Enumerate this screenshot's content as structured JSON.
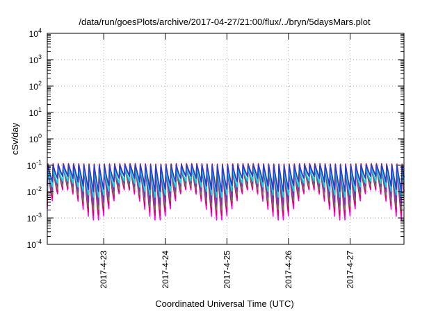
{
  "chart_data": {
    "type": "line",
    "title": "/data/run/goesPlots/archive/2017-04-27/21:00/flux/../bryn/5daysMars.plot",
    "xlabel": "Coordinated Universal Time (UTC)",
    "ylabel": "cSv/day",
    "yscale": "log",
    "ylim": [
      0.0001,
      10000
    ],
    "xlim": [
      "2017-04-22T02:00",
      "2017-04-27T21:00"
    ],
    "grid": true,
    "legend": "none",
    "y_ticks": [
      {
        "base": "10",
        "exp": "-4"
      },
      {
        "base": "10",
        "exp": "-3"
      },
      {
        "base": "10",
        "exp": "-2"
      },
      {
        "base": "10",
        "exp": "-1"
      },
      {
        "base": "10",
        "exp": "0"
      },
      {
        "base": "10",
        "exp": "1"
      },
      {
        "base": "10",
        "exp": "2"
      },
      {
        "base": "10",
        "exp": "3"
      },
      {
        "base": "10",
        "exp": "4"
      }
    ],
    "x_ticks": [
      "2017-4-23",
      "2017-4-24",
      "2017-4-25",
      "2017-4-26",
      "2017-4-27"
    ],
    "pattern": {
      "cycles_per_day": 12,
      "cycle_peak_value": 0.1,
      "slow_modulation_period_days": 1
    },
    "series": [
      {
        "color": "#ff00ff",
        "peak": 0.1,
        "trough": 0.0008
      },
      {
        "color": "#e0006a",
        "peak": 0.09,
        "trough": 0.0012
      },
      {
        "color": "#5a8a3a",
        "peak": 0.09,
        "trough": 0.002
      },
      {
        "color": "#7a30c0",
        "peak": 0.1,
        "trough": 0.003
      },
      {
        "color": "#00e0e0",
        "peak": 0.08,
        "trough": 0.006
      },
      {
        "color": "#ff2020",
        "peak": 0.12,
        "trough": 0.01
      },
      {
        "color": "#1f3fd8",
        "peak": 0.11,
        "trough": 0.01
      }
    ]
  }
}
